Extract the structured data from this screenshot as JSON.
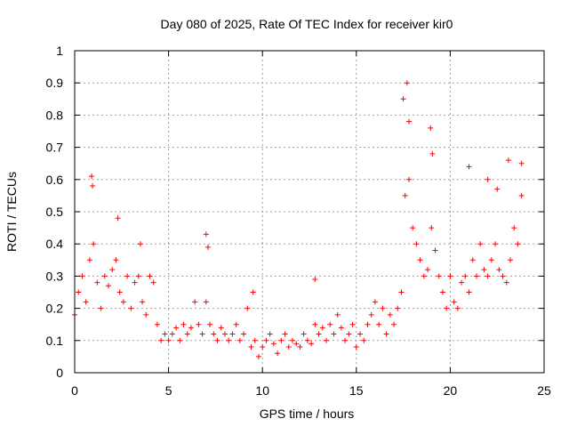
{
  "chart_data": {
    "type": "scatter",
    "title": "Day 080 of 2025, Rate Of TEC Index for receiver kir0",
    "xlabel": "GPS time / hours",
    "ylabel": "ROTI / TECUs",
    "xlim": [
      0,
      25
    ],
    "ylim": [
      0,
      1
    ],
    "xticks": [
      "0",
      "5",
      "10",
      "15",
      "20",
      "25"
    ],
    "yticks": [
      "0",
      "0.1",
      "0.2",
      "0.3",
      "0.4",
      "0.5",
      "0.6",
      "0.7",
      "0.8",
      "0.9",
      "1"
    ],
    "grid": true,
    "marker": "+",
    "color": "#ff0000",
    "series": [
      {
        "name": "kir0",
        "x": [
          0.0,
          0.2,
          0.4,
          0.6,
          0.8,
          1.0,
          1.2,
          1.4,
          1.6,
          1.8,
          2.0,
          2.2,
          2.4,
          2.6,
          2.8,
          3.0,
          3.2,
          3.4,
          3.6,
          3.8,
          4.0,
          4.2,
          4.4,
          4.6,
          4.8,
          5.0,
          5.2,
          5.4,
          5.6,
          5.8,
          6.0,
          6.2,
          6.4,
          6.6,
          6.8,
          7.0,
          7.2,
          7.4,
          7.6,
          7.8,
          8.0,
          8.2,
          8.4,
          8.6,
          8.8,
          9.0,
          9.2,
          9.4,
          9.6,
          9.8,
          10.0,
          10.2,
          10.4,
          10.6,
          10.8,
          11.0,
          11.2,
          11.4,
          11.6,
          11.8,
          12.0,
          12.2,
          12.4,
          12.6,
          12.8,
          13.0,
          13.2,
          13.4,
          13.6,
          13.8,
          14.0,
          14.2,
          14.4,
          14.6,
          14.8,
          15.0,
          15.2,
          15.4,
          15.6,
          15.8,
          16.0,
          16.2,
          16.4,
          16.6,
          16.8,
          17.0,
          17.2,
          17.4,
          17.6,
          17.8,
          18.0,
          18.2,
          18.4,
          18.6,
          18.8,
          19.0,
          19.2,
          19.4,
          19.6,
          19.8,
          20.0,
          20.2,
          20.4,
          20.6,
          20.8,
          21.0,
          21.2,
          21.4,
          21.6,
          21.8,
          22.0,
          22.2,
          22.4,
          22.6,
          22.8,
          23.0,
          23.2,
          23.4,
          23.6,
          23.8,
          0.9,
          0.95,
          2.3,
          3.5,
          7.0,
          7.1,
          9.5,
          12.8,
          17.5,
          17.7,
          17.8,
          18.95,
          19.05,
          21.0,
          22.0,
          22.5,
          23.1,
          23.8
        ],
        "y": [
          0.18,
          0.25,
          0.3,
          0.22,
          0.35,
          0.4,
          0.28,
          0.2,
          0.3,
          0.27,
          0.32,
          0.35,
          0.25,
          0.22,
          0.3,
          0.2,
          0.28,
          0.3,
          0.22,
          0.18,
          0.3,
          0.28,
          0.15,
          0.1,
          0.12,
          0.1,
          0.12,
          0.14,
          0.1,
          0.15,
          0.12,
          0.14,
          0.22,
          0.15,
          0.12,
          0.22,
          0.15,
          0.12,
          0.1,
          0.14,
          0.12,
          0.1,
          0.12,
          0.15,
          0.1,
          0.12,
          0.2,
          0.08,
          0.1,
          0.05,
          0.08,
          0.1,
          0.12,
          0.09,
          0.06,
          0.1,
          0.12,
          0.08,
          0.1,
          0.09,
          0.08,
          0.12,
          0.1,
          0.09,
          0.15,
          0.12,
          0.14,
          0.1,
          0.15,
          0.12,
          0.18,
          0.14,
          0.1,
          0.12,
          0.15,
          0.08,
          0.12,
          0.1,
          0.15,
          0.18,
          0.22,
          0.15,
          0.2,
          0.12,
          0.18,
          0.15,
          0.2,
          0.25,
          0.55,
          0.6,
          0.45,
          0.4,
          0.35,
          0.3,
          0.32,
          0.45,
          0.38,
          0.3,
          0.25,
          0.2,
          0.3,
          0.22,
          0.2,
          0.28,
          0.3,
          0.25,
          0.35,
          0.3,
          0.4,
          0.32,
          0.3,
          0.35,
          0.4,
          0.32,
          0.3,
          0.28,
          0.35,
          0.45,
          0.4,
          0.55,
          0.61,
          0.58,
          0.48,
          0.4,
          0.43,
          0.39,
          0.25,
          0.29,
          0.85,
          0.9,
          0.78,
          0.76,
          0.68,
          0.64,
          0.6,
          0.57,
          0.66,
          0.65
        ]
      }
    ]
  }
}
